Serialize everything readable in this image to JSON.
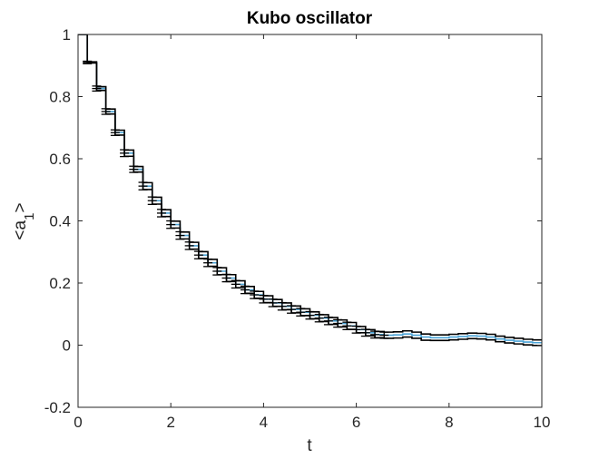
{
  "chart_data": {
    "type": "line",
    "title": "Kubo oscillator",
    "xlabel": "t",
    "ylabel": "<a_1>",
    "xlim": [
      0,
      10
    ],
    "ylim": [
      -0.2,
      1
    ],
    "xticks": [
      "0",
      "2",
      "4",
      "6",
      "8",
      "10"
    ],
    "yticks": [
      "-0.2",
      "0",
      "0.2",
      "0.4",
      "0.6",
      "0.8",
      "1"
    ],
    "grid": false,
    "legend": "none",
    "colors": {
      "envelope": "#000000",
      "mean": "#4aa3d6",
      "axes": "#262626"
    },
    "series": [
      {
        "role": "mean",
        "x": [
          0,
          0.2,
          0.4,
          0.6,
          0.8,
          1.0,
          1.2,
          1.4,
          1.6,
          1.8,
          2.0,
          2.2,
          2.4,
          2.6,
          2.8,
          3.0,
          3.2,
          3.4,
          3.6,
          3.8,
          4.0,
          4.2,
          4.4,
          4.6,
          4.8,
          5.0,
          5.2,
          5.4,
          5.6,
          5.8,
          6.0,
          6.2,
          6.4,
          6.6,
          6.8,
          7.0,
          7.2,
          7.4,
          7.6,
          7.8,
          8.0,
          8.2,
          8.4,
          8.6,
          8.8,
          9.0,
          9.2,
          9.4,
          9.6,
          9.8,
          10.0
        ],
        "y": [
          1.0,
          0.91,
          0.826,
          0.752,
          0.684,
          0.618,
          0.566,
          0.512,
          0.465,
          0.425,
          0.388,
          0.353,
          0.32,
          0.29,
          0.265,
          0.238,
          0.216,
          0.196,
          0.178,
          0.162,
          0.148,
          0.136,
          0.125,
          0.115,
          0.106,
          0.096,
          0.087,
          0.078,
          0.07,
          0.062,
          0.05,
          0.04,
          0.034,
          0.032,
          0.033,
          0.036,
          0.032,
          0.026,
          0.024,
          0.024,
          0.026,
          0.028,
          0.03,
          0.029,
          0.026,
          0.02,
          0.016,
          0.013,
          0.01,
          0.008,
          0.007
        ]
      },
      {
        "role": "upper",
        "x": [
          0,
          0.2,
          0.4,
          0.6,
          0.8,
          1.0,
          1.2,
          1.4,
          1.6,
          1.8,
          2.0,
          2.2,
          2.4,
          2.6,
          2.8,
          3.0,
          3.2,
          3.4,
          3.6,
          3.8,
          4.0,
          4.2,
          4.4,
          4.6,
          4.8,
          5.0,
          5.2,
          5.4,
          5.6,
          5.8,
          6.0,
          6.2,
          6.4,
          6.6,
          6.8,
          7.0,
          7.2,
          7.4,
          7.6,
          7.8,
          8.0,
          8.2,
          8.4,
          8.6,
          8.8,
          9.0,
          9.2,
          9.4,
          9.6,
          9.8,
          10.0
        ],
        "y": [
          1.0,
          0.912,
          0.832,
          0.76,
          0.692,
          0.628,
          0.575,
          0.523,
          0.476,
          0.436,
          0.399,
          0.364,
          0.331,
          0.301,
          0.276,
          0.249,
          0.227,
          0.207,
          0.189,
          0.173,
          0.159,
          0.147,
          0.136,
          0.126,
          0.117,
          0.107,
          0.098,
          0.089,
          0.081,
          0.073,
          0.06,
          0.05,
          0.044,
          0.042,
          0.043,
          0.046,
          0.042,
          0.036,
          0.033,
          0.033,
          0.035,
          0.037,
          0.039,
          0.038,
          0.035,
          0.029,
          0.025,
          0.022,
          0.019,
          0.017,
          0.016
        ]
      },
      {
        "role": "lower",
        "x": [
          0,
          0.2,
          0.4,
          0.6,
          0.8,
          1.0,
          1.2,
          1.4,
          1.6,
          1.8,
          2.0,
          2.2,
          2.4,
          2.6,
          2.8,
          3.0,
          3.2,
          3.4,
          3.6,
          3.8,
          4.0,
          4.2,
          4.4,
          4.6,
          4.8,
          5.0,
          5.2,
          5.4,
          5.6,
          5.8,
          6.0,
          6.2,
          6.4,
          6.6,
          6.8,
          7.0,
          7.2,
          7.4,
          7.6,
          7.8,
          8.0,
          8.2,
          8.4,
          8.6,
          8.8,
          9.0,
          9.2,
          9.4,
          9.6,
          9.8,
          10.0
        ],
        "y": [
          1.0,
          0.908,
          0.82,
          0.744,
          0.676,
          0.608,
          0.557,
          0.501,
          0.454,
          0.414,
          0.377,
          0.342,
          0.309,
          0.279,
          0.254,
          0.227,
          0.205,
          0.185,
          0.167,
          0.151,
          0.137,
          0.125,
          0.114,
          0.104,
          0.095,
          0.085,
          0.076,
          0.067,
          0.059,
          0.051,
          0.04,
          0.03,
          0.024,
          0.022,
          0.023,
          0.026,
          0.022,
          0.016,
          0.015,
          0.015,
          0.017,
          0.019,
          0.021,
          0.02,
          0.017,
          0.011,
          0.007,
          0.004,
          0.001,
          -0.001,
          -0.002
        ]
      }
    ],
    "errorbars": {
      "x": [
        0.2,
        0.4,
        0.6,
        0.8,
        1.0,
        1.2,
        1.4,
        1.6,
        1.8,
        2.0,
        2.2,
        2.4,
        2.6,
        2.8,
        3.0,
        3.2,
        3.4,
        3.6,
        3.8,
        4.0,
        4.2,
        4.4,
        4.6,
        4.8,
        5.0,
        5.2,
        5.4,
        5.6,
        5.8,
        6.0,
        6.2,
        6.4,
        6.6
      ],
      "y": [
        0.91,
        0.826,
        0.752,
        0.684,
        0.618,
        0.566,
        0.512,
        0.465,
        0.425,
        0.388,
        0.353,
        0.32,
        0.29,
        0.265,
        0.238,
        0.216,
        0.196,
        0.178,
        0.162,
        0.148,
        0.136,
        0.125,
        0.115,
        0.106,
        0.096,
        0.087,
        0.078,
        0.07,
        0.062,
        0.05,
        0.04,
        0.034,
        0.032
      ],
      "err": [
        0.004,
        0.008,
        0.009,
        0.009,
        0.011,
        0.01,
        0.012,
        0.012,
        0.012,
        0.012,
        0.012,
        0.012,
        0.012,
        0.012,
        0.012,
        0.012,
        0.012,
        0.012,
        0.012,
        0.012,
        0.012,
        0.012,
        0.012,
        0.012,
        0.012,
        0.012,
        0.012,
        0.012,
        0.012,
        0.011,
        0.011,
        0.011,
        0.01
      ]
    }
  }
}
